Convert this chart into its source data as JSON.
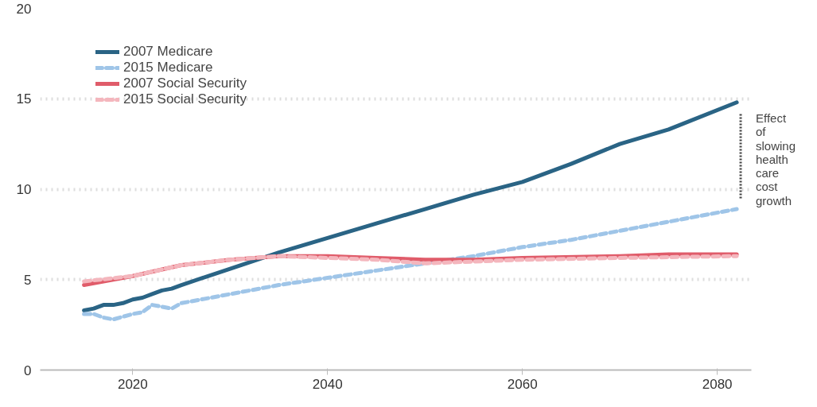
{
  "chart_data": {
    "type": "line",
    "xlim": [
      2010.5,
      2083.5
    ],
    "ylim": [
      0,
      20
    ],
    "xticks": [
      2020,
      2040,
      2060,
      2080
    ],
    "yticks": [
      0,
      5,
      10,
      15,
      20
    ],
    "grid": "y",
    "legend": "top left",
    "annotations": [
      "Effect of slowing health care cost growth"
    ],
    "series": [
      {
        "name": "2007 Medicare",
        "color": "#2a6485",
        "line_style": "solid",
        "x": [
          2015,
          2016,
          2017,
          2018,
          2019,
          2020,
          2021,
          2022,
          2023,
          2024,
          2025,
          2030,
          2035,
          2040,
          2045,
          2050,
          2055,
          2060,
          2065,
          2070,
          2075,
          2082
        ],
        "values": [
          3.3,
          3.4,
          3.6,
          3.6,
          3.7,
          3.9,
          4.0,
          4.2,
          4.4,
          4.5,
          4.7,
          5.6,
          6.5,
          7.3,
          8.1,
          8.9,
          9.7,
          10.4,
          11.4,
          12.5,
          13.3,
          14.8
        ]
      },
      {
        "name": "2015 Medicare",
        "color": "#9fc5e8",
        "line_style": "dashed",
        "x": [
          2015,
          2016,
          2017,
          2018,
          2020,
          2021,
          2022,
          2023,
          2024,
          2025,
          2030,
          2035,
          2040,
          2045,
          2050,
          2055,
          2060,
          2065,
          2070,
          2075,
          2082
        ],
        "values": [
          3.1,
          3.1,
          2.9,
          2.8,
          3.1,
          3.2,
          3.6,
          3.5,
          3.4,
          3.7,
          4.2,
          4.7,
          5.1,
          5.5,
          5.9,
          6.3,
          6.8,
          7.2,
          7.7,
          8.2,
          8.9
        ]
      },
      {
        "name": "2007 Social Security",
        "color": "#e05c6a",
        "line_style": "solid",
        "x": [
          2015,
          2018,
          2020,
          2025,
          2030,
          2035,
          2040,
          2045,
          2050,
          2055,
          2060,
          2070,
          2075,
          2082
        ],
        "values": [
          4.7,
          5.0,
          5.2,
          5.8,
          6.1,
          6.3,
          6.3,
          6.2,
          6.1,
          6.1,
          6.2,
          6.3,
          6.4,
          6.4
        ]
      },
      {
        "name": "2015 Social Security",
        "color": "#f4b6bd",
        "line_style": "dashed",
        "x": [
          2015,
          2020,
          2025,
          2030,
          2035,
          2040,
          2045,
          2050,
          2055,
          2060,
          2070,
          2082
        ],
        "values": [
          4.9,
          5.2,
          5.8,
          6.1,
          6.3,
          6.2,
          6.1,
          5.9,
          6.0,
          6.1,
          6.2,
          6.3
        ]
      }
    ]
  }
}
